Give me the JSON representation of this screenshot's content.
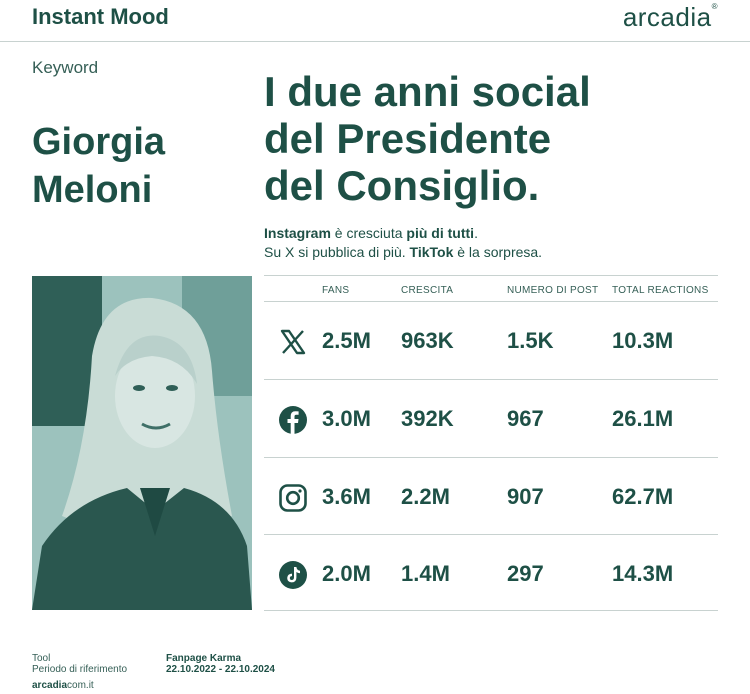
{
  "header": {
    "title": "Instant Mood",
    "brand": "arcadia",
    "brand_mark": "®"
  },
  "keyword": {
    "label": "Keyword",
    "name_line1": "Giorgia",
    "name_line2": "Meloni"
  },
  "headline": {
    "line1": "I due anni social",
    "line2": "del Presidente",
    "line3": "del Consiglio."
  },
  "subtitle": {
    "l1_strong": "Instagram",
    "l1_mid": " è cresciuta ",
    "l1_strong2": "più di tutti",
    "l1_end": ".",
    "l2_a": "Su X si pubblica di più. ",
    "l2_strong": "TikTok",
    "l2_end": " è la sorpresa."
  },
  "table": {
    "columns": [
      "FANS",
      "CRESCITA",
      "NUMERO DI POST",
      "TOTAL REACTIONS"
    ],
    "rows": [
      {
        "icon": "x-icon",
        "fans": "2.5M",
        "crescita": "963K",
        "post": "1.5K",
        "reactions": "10.3M"
      },
      {
        "icon": "facebook-icon",
        "fans": "3.0M",
        "crescita": "392K",
        "post": "967",
        "reactions": "26.1M"
      },
      {
        "icon": "instagram-icon",
        "fans": "3.6M",
        "crescita": "2.2M",
        "post": "907",
        "reactions": "62.7M"
      },
      {
        "icon": "tiktok-icon",
        "fans": "2.0M",
        "crescita": "1.4M",
        "post": "297",
        "reactions": "14.3M"
      }
    ]
  },
  "footer": {
    "tool_label": "Tool",
    "period_label": "Periodo di riferimento",
    "tool_value": "Fanpage Karma",
    "period_value": "22.10.2022 - 22.10.2024",
    "site_strong": "arcadia",
    "site_rest": "com.it"
  },
  "colors": {
    "primary": "#1e5046",
    "photo_tint": "#8fb7b2",
    "rule": "#c8d2d0"
  }
}
